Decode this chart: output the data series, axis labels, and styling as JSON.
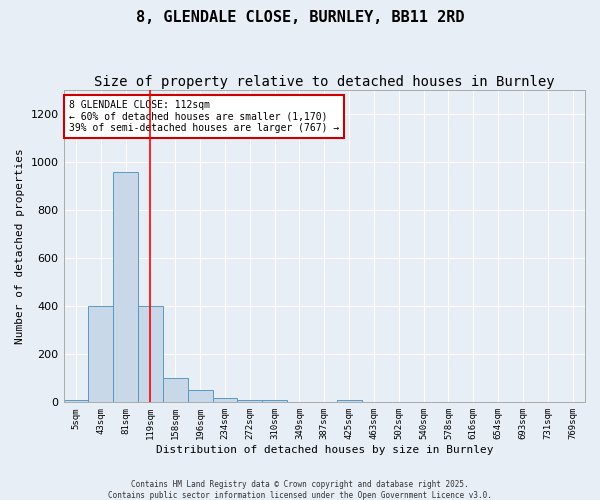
{
  "title": "8, GLENDALE CLOSE, BURNLEY, BB11 2RD",
  "subtitle": "Size of property relative to detached houses in Burnley",
  "xlabel": "Distribution of detached houses by size in Burnley",
  "ylabel": "Number of detached properties",
  "bin_labels": [
    "5sqm",
    "43sqm",
    "81sqm",
    "119sqm",
    "158sqm",
    "196sqm",
    "234sqm",
    "272sqm",
    "310sqm",
    "349sqm",
    "387sqm",
    "425sqm",
    "463sqm",
    "502sqm",
    "540sqm",
    "578sqm",
    "616sqm",
    "654sqm",
    "693sqm",
    "731sqm",
    "769sqm"
  ],
  "bar_heights": [
    10,
    400,
    960,
    400,
    100,
    50,
    20,
    10,
    10,
    0,
    0,
    10,
    0,
    0,
    0,
    0,
    0,
    0,
    0,
    0,
    0
  ],
  "bar_color": "#c8d8e8",
  "bar_edge_color": "#5a9abf",
  "red_line_x": 3,
  "ylim": [
    0,
    1300
  ],
  "yticks": [
    0,
    200,
    400,
    600,
    800,
    1000,
    1200
  ],
  "annotation_text": "8 GLENDALE CLOSE: 112sqm\n← 60% of detached houses are smaller (1,170)\n39% of semi-detached houses are larger (767) →",
  "annotation_box_color": "#ffffff",
  "annotation_box_edge": "#cc0000",
  "footer1": "Contains HM Land Registry data © Crown copyright and database right 2025.",
  "footer2": "Contains public sector information licensed under the Open Government Licence v3.0.",
  "background_color": "#e8eef5",
  "grid_color": "#ffffff",
  "title_fontsize": 11,
  "subtitle_fontsize": 10,
  "axis_fontsize": 8,
  "tick_fontsize": 6.5
}
